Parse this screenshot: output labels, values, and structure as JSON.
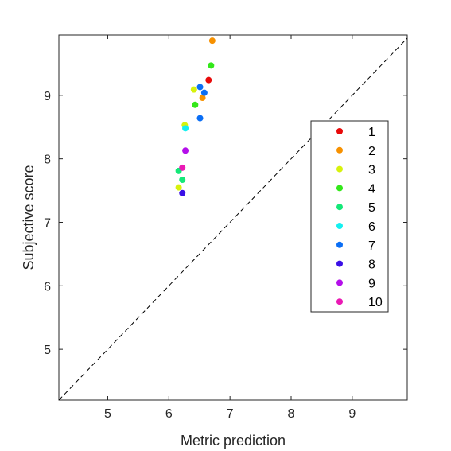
{
  "chart_data": {
    "type": "scatter",
    "xlabel": "Metric prediction",
    "ylabel": "Subjective score",
    "xlim": [
      4.2,
      9.9
    ],
    "ylim": [
      4.2,
      9.95
    ],
    "xticks": [
      5,
      6,
      7,
      8,
      9
    ],
    "yticks": [
      5,
      6,
      7,
      8,
      9
    ],
    "grid": false,
    "box": true,
    "reference_line": {
      "style": "dashed",
      "color": "#000000",
      "from": [
        4.2,
        4.2
      ],
      "to": [
        9.9,
        9.9
      ]
    },
    "legend": {
      "placement": "right-middle"
    },
    "series": [
      {
        "name": "1",
        "color": "#e80a0a",
        "points": [
          [
            6.65,
            9.24
          ]
        ]
      },
      {
        "name": "2",
        "color": "#f79100",
        "points": [
          [
            6.71,
            9.86
          ],
          [
            6.55,
            8.96
          ]
        ]
      },
      {
        "name": "3",
        "color": "#d7f20c",
        "points": [
          [
            6.41,
            9.09
          ],
          [
            6.26,
            8.53
          ],
          [
            6.16,
            7.55
          ]
        ]
      },
      {
        "name": "4",
        "color": "#33e81a",
        "points": [
          [
            6.69,
            9.47
          ],
          [
            6.43,
            8.85
          ]
        ]
      },
      {
        "name": "5",
        "color": "#14e878",
        "points": [
          [
            6.16,
            7.81
          ],
          [
            6.22,
            7.67
          ]
        ]
      },
      {
        "name": "6",
        "color": "#14f0f0",
        "points": [
          [
            6.27,
            8.48
          ]
        ]
      },
      {
        "name": "7",
        "color": "#0a6ef5",
        "points": [
          [
            6.51,
            9.13
          ],
          [
            6.58,
            9.04
          ],
          [
            6.51,
            8.64
          ]
        ]
      },
      {
        "name": "8",
        "color": "#3a0fe6",
        "points": [
          [
            6.22,
            7.46
          ]
        ]
      },
      {
        "name": "9",
        "color": "#b40fea",
        "points": [
          [
            6.27,
            8.13
          ]
        ]
      },
      {
        "name": "10",
        "color": "#ea19b4",
        "points": [
          [
            6.22,
            7.86
          ]
        ]
      }
    ]
  }
}
